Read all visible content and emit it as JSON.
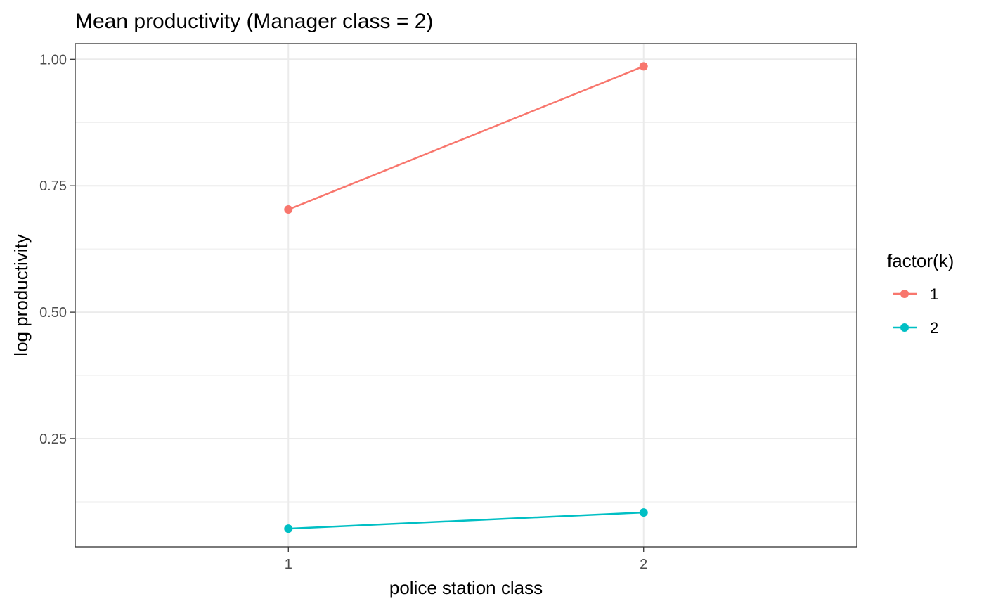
{
  "chart_data": {
    "type": "line",
    "title": "Mean productivity (Manager class = 2)",
    "xlabel": "police station class",
    "ylabel": "log productivity",
    "x": [
      1,
      2
    ],
    "x_tick_labels": [
      "1",
      "2"
    ],
    "xlim": [
      0.4,
      2.6
    ],
    "y_tick_labels": [
      "0.25",
      "0.50",
      "0.75",
      "1.00"
    ],
    "y_ticks": [
      0.25,
      0.5,
      0.75,
      1.0
    ],
    "ylim": [
      0.036,
      1.031
    ],
    "grid": true,
    "legend": {
      "title": "factor(k)",
      "placement": "right"
    },
    "series": [
      {
        "name": "1",
        "color": "#F8766D",
        "values": [
          0.703,
          0.986
        ]
      },
      {
        "name": "2",
        "color": "#00BFC4",
        "values": [
          0.072,
          0.104
        ]
      }
    ]
  }
}
